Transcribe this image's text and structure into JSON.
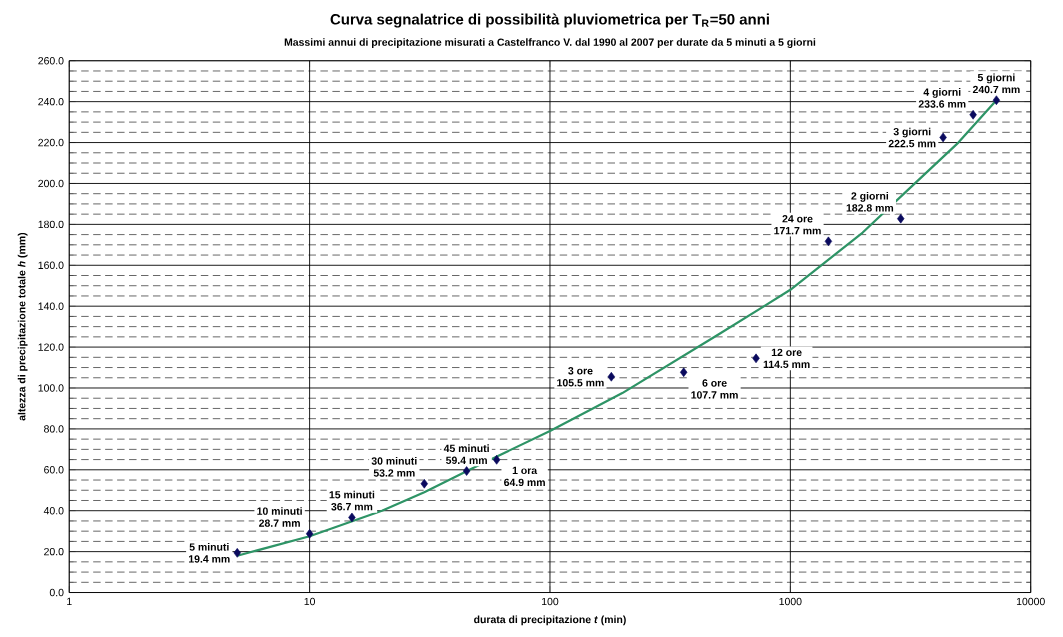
{
  "chart_data": {
    "type": "scatter",
    "title": "Curva segnalatrice di possibilità pluviometrica per T$_{R}$=50 anni",
    "subtitle": "Massimi annui di precipitazione misurati a Castelfranco V. dal 1990 al 2007 per durate da 5 minuti a 5 giorni",
    "xlabel": "durata di precipitazione *t* (min)",
    "ylabel": "altezza di precipitazione totale *h* (mm)",
    "log": "x",
    "grid": true,
    "marker": "diamond",
    "xlim": [
      1,
      10000
    ],
    "xticks": [
      1,
      10,
      100,
      1000,
      10000
    ],
    "ylim": [
      0,
      260
    ],
    "yticks": [
      {
        "value": 0,
        "label": "0.0"
      },
      {
        "value": 20,
        "label": "20.0"
      },
      {
        "value": 40,
        "label": "40.0"
      },
      {
        "value": 60,
        "label": "60.0"
      },
      {
        "value": 80,
        "label": "80.0"
      },
      {
        "value": 100,
        "label": "100.0"
      },
      {
        "value": 120,
        "label": "120.0"
      },
      {
        "value": 140,
        "label": "140.0"
      },
      {
        "value": 160,
        "label": "160.0"
      },
      {
        "value": 180,
        "label": "180.0"
      },
      {
        "value": 200,
        "label": "200.0"
      },
      {
        "value": 220,
        "label": "220.0"
      },
      {
        "value": 240,
        "label": "240.0"
      },
      {
        "value": 260,
        "label": "260.0"
      }
    ],
    "series": [
      {
        "color": "#0a0a5e",
        "x": [
          5,
          10,
          15,
          30,
          45,
          60,
          180,
          360,
          720,
          1440,
          2880,
          4320,
          5760,
          7200
        ],
        "values": [
          19.4,
          28.7,
          36.7,
          53.2,
          59.4,
          64.9,
          105.5,
          107.7,
          114.5,
          171.7,
          182.8,
          222.5,
          233.6,
          240.7
        ],
        "value_labels": [
          "19.4 mm",
          "28.7 mm",
          "36.7 mm",
          "53.2 mm",
          "59.4 mm",
          "64.9 mm",
          "105.5 mm",
          "107.7 mm",
          "114.5 mm",
          "171.7 mm",
          "182.8 mm",
          "222.5 mm",
          "233.6 mm",
          "240.7 mm"
        ]
      },
      {
        "type": "line",
        "color": "#2e9466",
        "marker": "none",
        "x": [
          5,
          10,
          20,
          30,
          50,
          100,
          200,
          500,
          1000,
          2000,
          3000,
          5000,
          7200
        ],
        "values": [
          18,
          27.5,
          40,
          49,
          62,
          79,
          97.5,
          126,
          148,
          176,
          195.5,
          220,
          240.7
        ]
      }
    ],
    "annotations": [
      {
        "text": "5 minuti",
        "x": 5,
        "y": 19.4
      },
      {
        "text": "10 minuti",
        "x": 10,
        "y": 28.7
      },
      {
        "text": "15 minuti",
        "x": 15,
        "y": 36.7
      },
      {
        "text": "30 minuti",
        "x": 30,
        "y": 53.2
      },
      {
        "text": "45 minuti",
        "x": 45,
        "y": 59.4
      },
      {
        "text": "1 ora",
        "x": 60,
        "y": 64.9
      },
      {
        "text": "3 ore",
        "x": 180,
        "y": 105.5
      },
      {
        "text": "6 ore",
        "x": 360,
        "y": 107.7
      },
      {
        "text": "12 ore",
        "x": 720,
        "y": 114.5
      },
      {
        "text": "24 ore",
        "x": 1440,
        "y": 171.7
      },
      {
        "text": "2 giorni",
        "x": 2880,
        "y": 182.8
      },
      {
        "text": "3 giorni",
        "x": 4320,
        "y": 222.5
      },
      {
        "text": "4 giorni",
        "x": 5760,
        "y": 233.6
      },
      {
        "text": "5 giorni",
        "x": 7200,
        "y": 240.7
      }
    ]
  }
}
